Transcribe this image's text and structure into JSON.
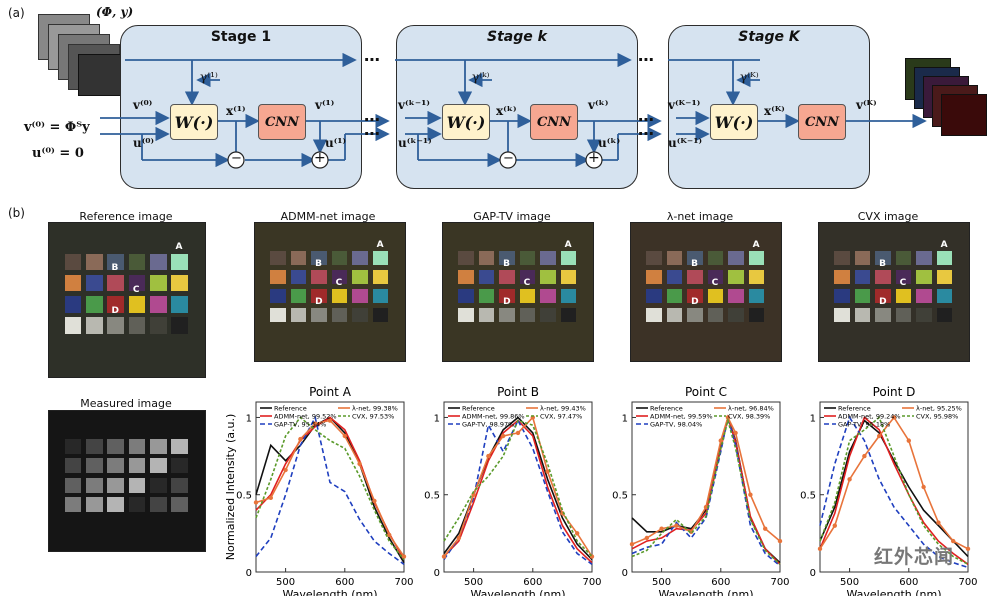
{
  "panel_a": {
    "label": "(a)",
    "input_label": "(Φ, y)",
    "init_v": "v⁽⁰⁾ = Φᵀy",
    "init_u": "u⁽⁰⁾ = 0",
    "stages": [
      {
        "title": "Stage 1",
        "gamma": "γ⁽¹⁾",
        "v_in": "v⁽⁰⁾",
        "u_in": "u⁽⁰⁾",
        "x": "x⁽¹⁾",
        "v_out": "v⁽¹⁾",
        "u_out": "u⁽¹⁾"
      },
      {
        "title": "Stage k",
        "gamma": "γ⁽ᵏ⁾",
        "v_in": "v⁽ᵏ⁻¹⁾",
        "u_in": "u⁽ᵏ⁻¹⁾",
        "x": "x⁽ᵏ⁾",
        "v_out": "v⁽ᵏ⁾",
        "u_out": "u⁽ᵏ⁾"
      },
      {
        "title": "Stage K",
        "gamma": "γ⁽ᴷ⁾",
        "v_in": "v⁽ᴷ⁻¹⁾",
        "u_in": "u⁽ᴷ⁻¹⁾",
        "x": "x⁽ᴷ⁾",
        "v_out": "v⁽ᴷ⁾"
      }
    ],
    "w_block": "W(·)",
    "cnn_block": "CNN",
    "ellipsis": "⋯",
    "minus": "−",
    "plus": "+"
  },
  "panel_b": {
    "label": "(b)",
    "images": [
      "Reference image",
      "ADMM-net image",
      "GAP-TV image",
      "λ-net image",
      "CVX image"
    ],
    "measured_label": "Measured image",
    "point_labels": [
      "A",
      "B",
      "C",
      "D"
    ]
  },
  "watermark": "红外芯闻",
  "chart_data": [
    {
      "type": "line",
      "title": "Point A",
      "xlabel": "Wavelength (nm)",
      "ylabel": "Normalized Intensity (a.u.)",
      "xlim": [
        450,
        700
      ],
      "ylim": [
        0,
        1.1
      ],
      "xticks": [
        500,
        600,
        700
      ],
      "yticks": [
        0,
        0.5,
        1
      ],
      "x": [
        450,
        475,
        500,
        525,
        550,
        575,
        600,
        625,
        650,
        675,
        700
      ],
      "series": [
        {
          "name": "Reference",
          "legend": "Reference",
          "color": "#111111",
          "values": [
            0.5,
            0.82,
            0.72,
            0.82,
            0.95,
            1.0,
            0.9,
            0.7,
            0.42,
            0.22,
            0.06
          ]
        },
        {
          "name": "ADMM-net",
          "legend": "ADMM-net, 99.52%",
          "color": "#e02020",
          "values": [
            0.4,
            0.5,
            0.7,
            0.85,
            0.94,
            1.0,
            0.92,
            0.72,
            0.45,
            0.25,
            0.08
          ]
        },
        {
          "name": "GAP-TV",
          "legend": "GAP-TV, 95.54%",
          "color": "#1f3fbf",
          "values": [
            0.1,
            0.22,
            0.5,
            0.82,
            1.0,
            0.58,
            0.52,
            0.34,
            0.2,
            0.12,
            0.05
          ]
        },
        {
          "name": "λ-net",
          "legend": "λ-net, 99.38%",
          "color": "#e8743b",
          "values": [
            0.45,
            0.48,
            0.66,
            0.86,
            0.96,
            0.98,
            0.88,
            0.7,
            0.46,
            0.24,
            0.1
          ]
        },
        {
          "name": "CVX",
          "legend": "CVX, 97.53%",
          "color": "#5a9a2a",
          "values": [
            0.35,
            0.6,
            0.88,
            1.0,
            0.92,
            0.85,
            0.8,
            0.62,
            0.4,
            0.2,
            0.08
          ]
        }
      ]
    },
    {
      "type": "line",
      "title": "Point B",
      "xlabel": "Wavelength (nm)",
      "ylabel": "",
      "xlim": [
        450,
        700
      ],
      "ylim": [
        0,
        1.1
      ],
      "xticks": [
        500,
        600,
        700
      ],
      "yticks": [
        0,
        0.5,
        1
      ],
      "x": [
        450,
        475,
        500,
        525,
        550,
        575,
        600,
        625,
        650,
        675,
        700
      ],
      "series": [
        {
          "name": "Reference",
          "legend": "Reference",
          "color": "#111111",
          "values": [
            0.12,
            0.25,
            0.5,
            0.74,
            0.92,
            1.0,
            0.9,
            0.6,
            0.35,
            0.18,
            0.08
          ]
        },
        {
          "name": "ADMM-net",
          "legend": "ADMM-net, 99.86%",
          "color": "#e02020",
          "values": [
            0.1,
            0.2,
            0.45,
            0.72,
            0.9,
            0.98,
            0.88,
            0.55,
            0.3,
            0.15,
            0.06
          ]
        },
        {
          "name": "GAP-TV",
          "legend": "GAP-TV, 98.97%",
          "color": "#1f3fbf",
          "values": [
            0.08,
            0.22,
            0.48,
            0.95,
            0.78,
            0.98,
            0.8,
            0.52,
            0.26,
            0.12,
            0.05
          ]
        },
        {
          "name": "λ-net",
          "legend": "λ-net, 99.43%",
          "color": "#e8743b",
          "values": [
            0.1,
            0.22,
            0.5,
            0.75,
            0.88,
            0.9,
            1.0,
            0.65,
            0.38,
            0.25,
            0.1
          ]
        },
        {
          "name": "CVX",
          "legend": "CVX, 97.47%",
          "color": "#5a9a2a",
          "values": [
            0.2,
            0.35,
            0.52,
            0.62,
            0.75,
            0.98,
            0.95,
            0.7,
            0.4,
            0.2,
            0.1
          ]
        }
      ]
    },
    {
      "type": "line",
      "title": "Point C",
      "xlabel": "Wavelength (nm)",
      "ylabel": "",
      "xlim": [
        450,
        700
      ],
      "ylim": [
        0,
        1.1
      ],
      "xticks": [
        500,
        600,
        700
      ],
      "yticks": [
        0,
        0.5,
        1
      ],
      "x": [
        450,
        475,
        500,
        525,
        550,
        575,
        600,
        612,
        625,
        650,
        675,
        700
      ],
      "series": [
        {
          "name": "Reference",
          "legend": "Reference",
          "color": "#111111",
          "values": [
            0.35,
            0.26,
            0.26,
            0.3,
            0.28,
            0.4,
            0.82,
            1.0,
            0.85,
            0.35,
            0.15,
            0.06
          ]
        },
        {
          "name": "ADMM-net",
          "legend": "ADMM-net, 99.59%",
          "color": "#e02020",
          "values": [
            0.15,
            0.2,
            0.22,
            0.28,
            0.27,
            0.38,
            0.8,
            1.0,
            0.84,
            0.36,
            0.15,
            0.05
          ]
        },
        {
          "name": "GAP-TV",
          "legend": "GAP-TV, 98.04%",
          "color": "#1f3fbf",
          "values": [
            0.12,
            0.16,
            0.18,
            0.32,
            0.22,
            0.35,
            0.78,
            1.0,
            0.82,
            0.3,
            0.12,
            0.04
          ]
        },
        {
          "name": "λ-net",
          "legend": "λ-net, 96.84%",
          "color": "#e8743b",
          "values": [
            0.18,
            0.22,
            0.28,
            0.3,
            0.26,
            0.42,
            0.85,
            1.0,
            0.9,
            0.5,
            0.28,
            0.2
          ]
        },
        {
          "name": "CVX",
          "legend": "CVX, 98.39%",
          "color": "#5a9a2a",
          "values": [
            0.1,
            0.14,
            0.25,
            0.34,
            0.25,
            0.36,
            0.8,
            0.98,
            0.8,
            0.34,
            0.14,
            0.05
          ]
        }
      ]
    },
    {
      "type": "line",
      "title": "Point D",
      "xlabel": "Wavelength (nm)",
      "ylabel": "",
      "xlim": [
        450,
        700
      ],
      "ylim": [
        0,
        1.1
      ],
      "xticks": [
        500,
        600,
        700
      ],
      "yticks": [
        0,
        0.5,
        1
      ],
      "x": [
        450,
        475,
        500,
        525,
        550,
        575,
        600,
        625,
        650,
        675,
        700
      ],
      "series": [
        {
          "name": "Reference",
          "legend": "Reference",
          "color": "#111111",
          "values": [
            0.2,
            0.42,
            0.78,
            0.98,
            0.9,
            0.72,
            0.55,
            0.4,
            0.3,
            0.2,
            0.1
          ]
        },
        {
          "name": "ADMM-net",
          "legend": "ADMM-net, 99.24%",
          "color": "#e02020",
          "values": [
            0.15,
            0.38,
            0.75,
            1.0,
            0.92,
            0.7,
            0.5,
            0.32,
            0.2,
            0.12,
            0.05
          ]
        },
        {
          "name": "GAP-TV",
          "legend": "GAP-TV, 95.18%",
          "color": "#1f3fbf",
          "values": [
            0.3,
            0.7,
            1.0,
            0.85,
            0.6,
            0.42,
            0.3,
            0.18,
            0.1,
            0.06,
            0.03
          ]
        },
        {
          "name": "λ-net",
          "legend": "λ-net, 95.25%",
          "color": "#e8743b",
          "values": [
            0.15,
            0.3,
            0.6,
            0.75,
            0.88,
            1.0,
            0.85,
            0.55,
            0.32,
            0.2,
            0.15
          ]
        },
        {
          "name": "CVX",
          "legend": "CVX, 95.98%",
          "color": "#5a9a2a",
          "values": [
            0.2,
            0.45,
            0.85,
            0.92,
            1.0,
            0.75,
            0.5,
            0.3,
            0.18,
            0.1,
            0.05
          ]
        }
      ]
    }
  ]
}
